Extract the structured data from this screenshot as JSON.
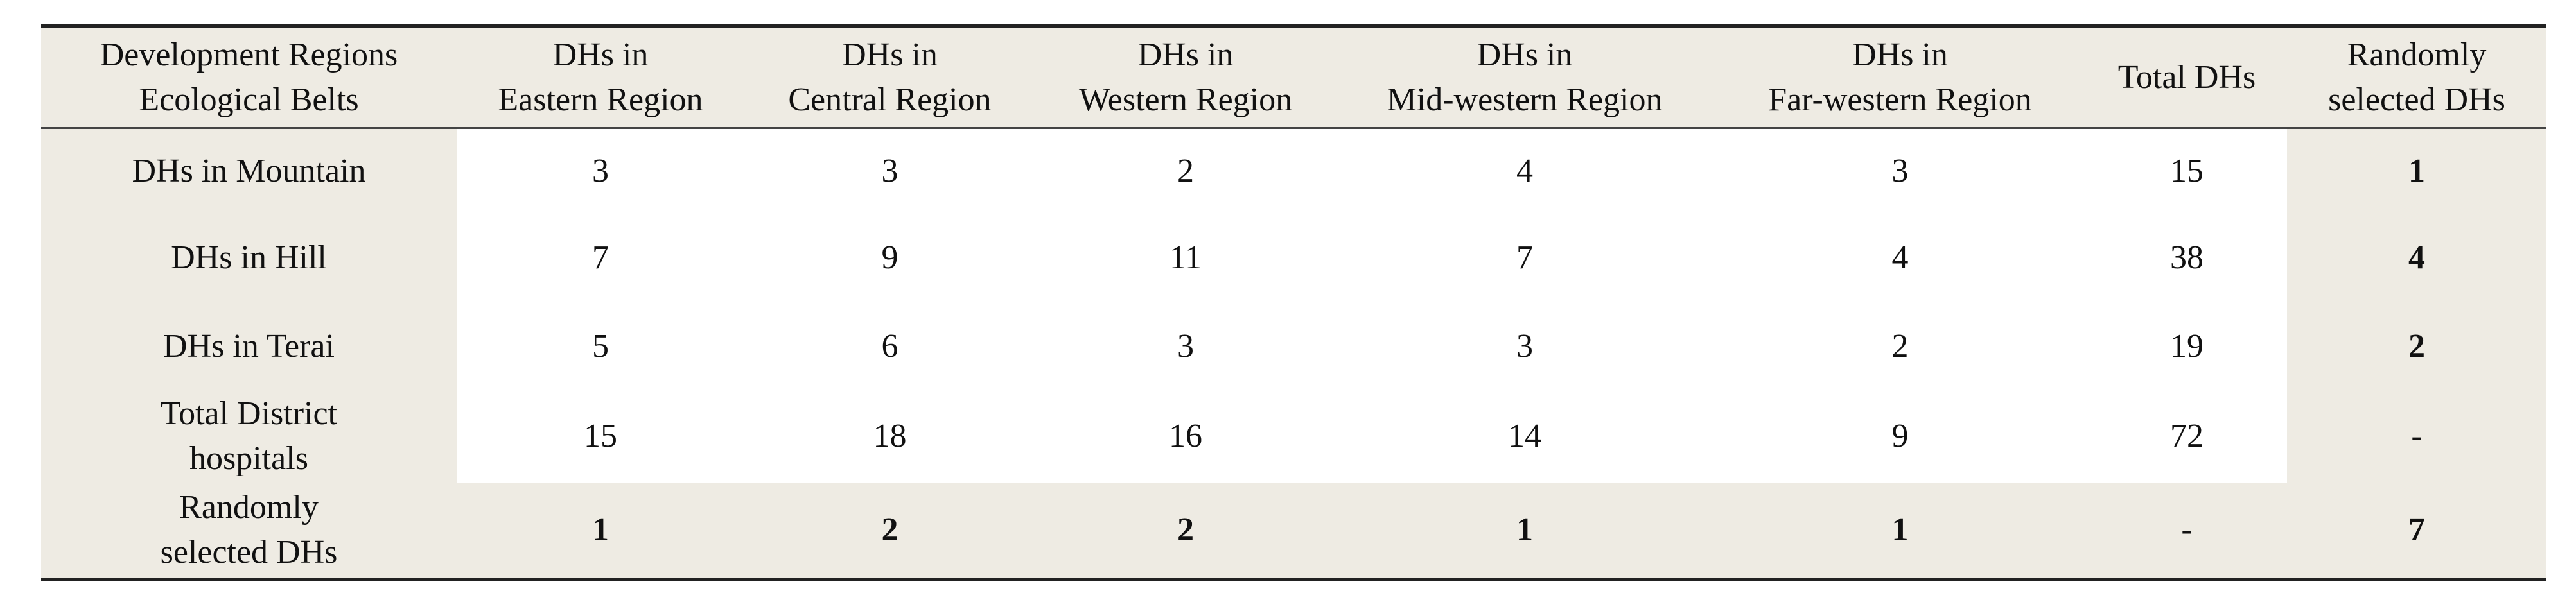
{
  "table": {
    "header": [
      [
        "Development Regions",
        "Ecological Belts"
      ],
      [
        "DHs in",
        "Eastern Region"
      ],
      [
        "DHs in",
        "Central Region"
      ],
      [
        "DHs in",
        "Western Region"
      ],
      [
        "DHs in",
        "Mid-western Region"
      ],
      [
        "DHs in",
        "Far-western Region"
      ],
      [
        "Total DHs"
      ],
      [
        "Randomly",
        "selected DHs"
      ]
    ],
    "rows": [
      {
        "label": [
          "DHs in Mountain"
        ],
        "cells": [
          3,
          3,
          2,
          4,
          3,
          15,
          1
        ]
      },
      {
        "label": [
          "DHs in Hill"
        ],
        "cells": [
          7,
          9,
          11,
          7,
          4,
          38,
          4
        ]
      },
      {
        "label": [
          "DHs in Terai"
        ],
        "cells": [
          5,
          6,
          3,
          3,
          2,
          19,
          2
        ]
      },
      {
        "label": [
          "Total District",
          "hospitals"
        ],
        "cells": [
          15,
          18,
          16,
          14,
          9,
          72,
          "-"
        ]
      },
      {
        "label": [
          "Randomly",
          "selected DHs"
        ],
        "cells": [
          1,
          2,
          2,
          1,
          1,
          "-",
          7
        ]
      }
    ]
  }
}
